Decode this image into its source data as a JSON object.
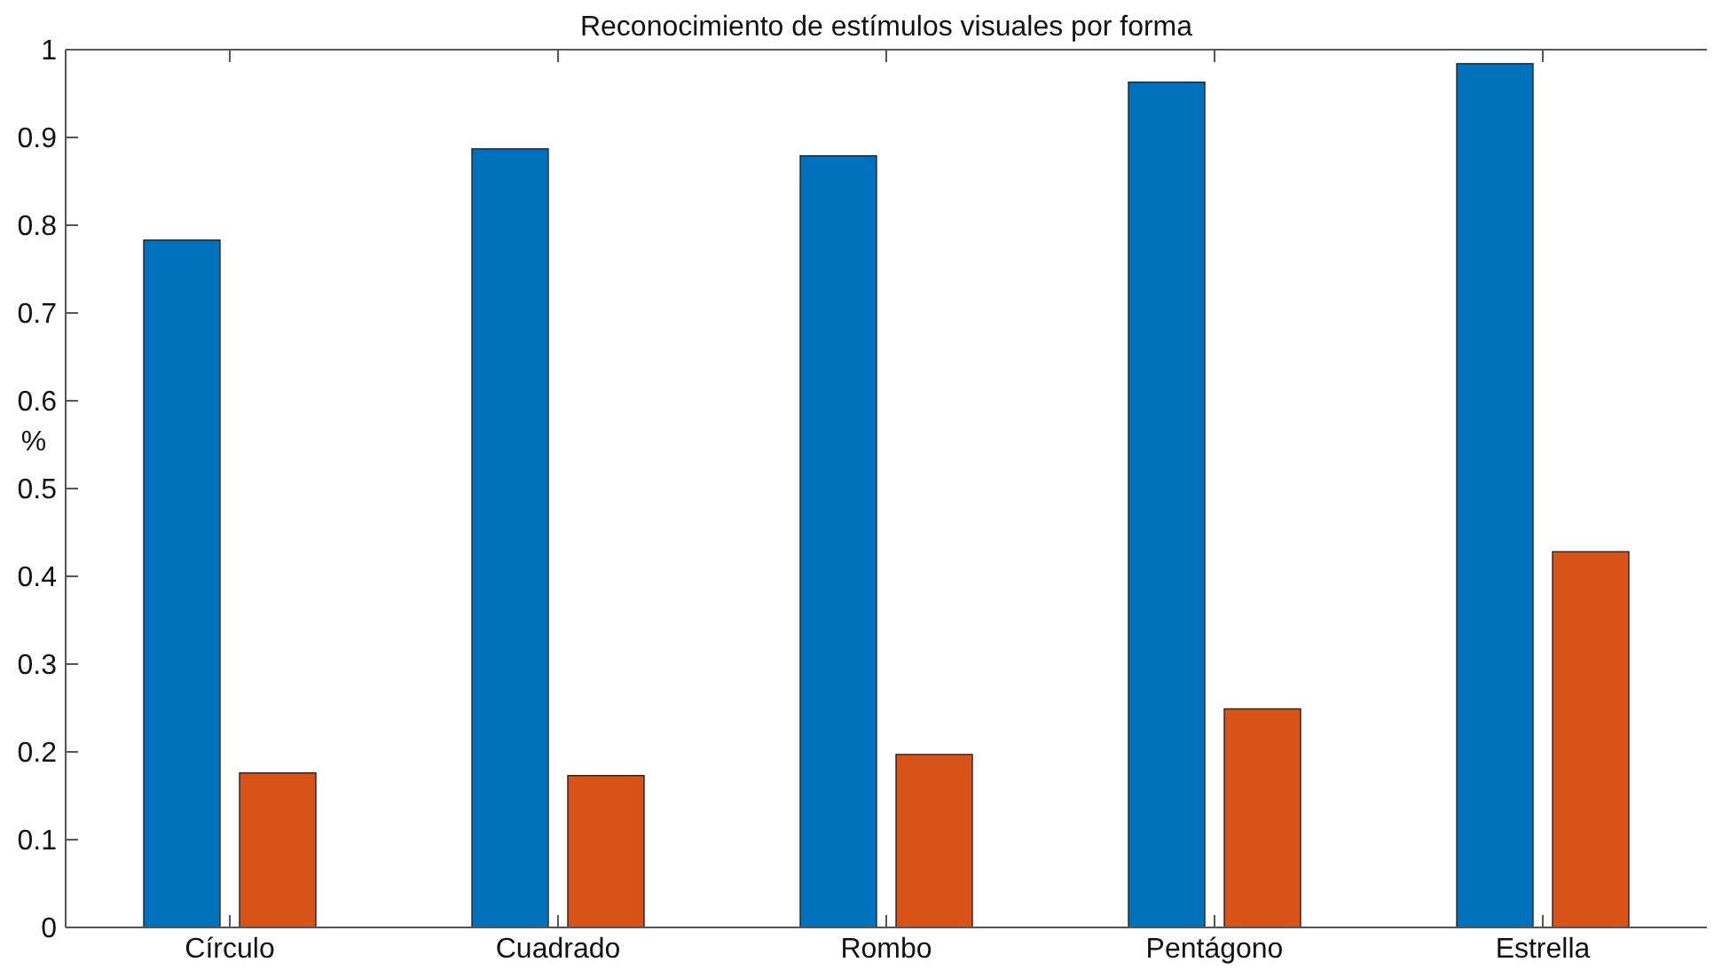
{
  "chart_data": {
    "type": "bar",
    "title": "Reconocimiento de estímulos visuales por forma",
    "ylabel": "%",
    "categories": [
      "Círculo",
      "Cuadrado",
      "Rombo",
      "Pentágono",
      "Estrella"
    ],
    "series": [
      {
        "color": "#0072bd",
        "values": [
          0.783,
          0.887,
          0.879,
          0.963,
          0.984
        ]
      },
      {
        "color": "#d95319",
        "values": [
          0.176,
          0.173,
          0.197,
          0.249,
          0.428
        ]
      }
    ],
    "ylim": [
      0,
      1
    ],
    "yticks": [
      0,
      0.1,
      0.2,
      0.3,
      0.4,
      0.5,
      0.6,
      0.7,
      0.8,
      0.9,
      1
    ],
    "grid": false
  }
}
